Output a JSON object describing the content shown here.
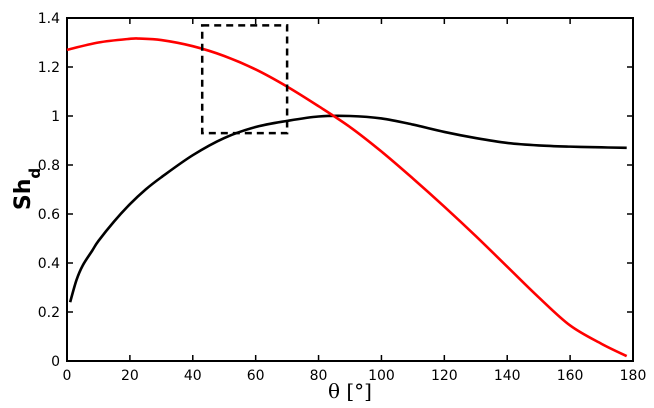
{
  "chart_data": {
    "type": "line",
    "xlabel": "θ [°]",
    "ylabel": {
      "main": "Sh",
      "subscript": "d"
    },
    "xlim": [
      0,
      180
    ],
    "ylim": [
      0,
      1.4
    ],
    "x_ticks": [
      0,
      20,
      40,
      60,
      80,
      100,
      120,
      140,
      160,
      180
    ],
    "y_ticks": [
      0,
      0.2,
      0.4,
      0.6,
      0.8,
      1,
      1.2,
      1.4
    ],
    "x_tick_labels": [
      "0",
      "20",
      "40",
      "60",
      "80",
      "100",
      "120",
      "140",
      "160",
      "180"
    ],
    "y_tick_labels": [
      "0",
      "0.2",
      "0.4",
      "0.6",
      "0.8",
      "1",
      "1.2",
      "1.4"
    ],
    "grid": false,
    "series": [
      {
        "color": "#000000",
        "x": [
          1,
          3,
          5,
          8,
          10,
          15,
          20,
          25,
          30,
          40,
          50,
          60,
          70,
          80,
          90,
          100,
          110,
          120,
          130,
          140,
          150,
          160,
          170,
          178
        ],
        "y": [
          0.24,
          0.33,
          0.39,
          0.45,
          0.49,
          0.57,
          0.64,
          0.7,
          0.75,
          0.84,
          0.91,
          0.955,
          0.98,
          0.998,
          1.0,
          0.99,
          0.965,
          0.935,
          0.91,
          0.89,
          0.88,
          0.875,
          0.872,
          0.87
        ]
      },
      {
        "color": "#ff0000",
        "x": [
          0,
          10,
          20,
          23,
          30,
          40,
          50,
          60,
          70,
          80,
          90,
          100,
          110,
          120,
          130,
          140,
          150,
          160,
          170,
          178
        ],
        "y": [
          1.27,
          1.3,
          1.315,
          1.316,
          1.31,
          1.285,
          1.245,
          1.19,
          1.12,
          1.04,
          0.955,
          0.855,
          0.745,
          0.63,
          0.51,
          0.385,
          0.26,
          0.145,
          0.07,
          0.02
        ]
      }
    ],
    "annotation_box": {
      "style": "dashed",
      "x_range": [
        43,
        70
      ],
      "y_range": [
        0.93,
        1.37
      ]
    }
  }
}
